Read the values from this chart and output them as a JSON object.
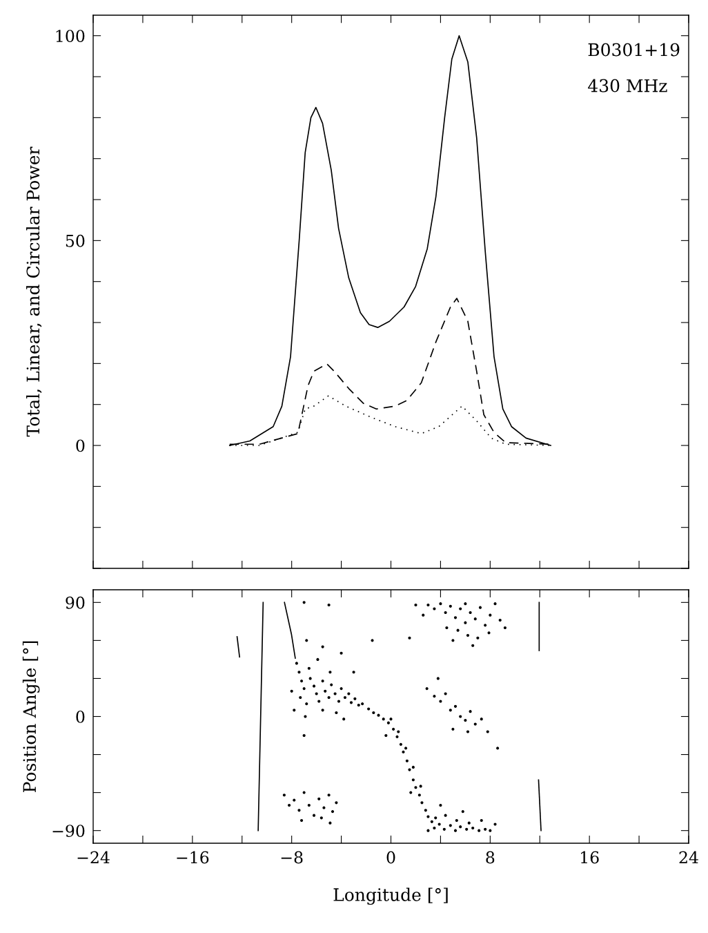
{
  "chart_data": [
    {
      "type": "line",
      "ylabel": "Total, Linear, and Circular Power",
      "annotations": [
        "B0301+19",
        "430 MHz"
      ],
      "xlim": [
        -24,
        24
      ],
      "ylim": [
        -30,
        105
      ],
      "xticks": [
        {
          "value": -24,
          "label": null
        },
        {
          "value": -20,
          "label": null
        },
        {
          "value": -16,
          "label": null
        },
        {
          "value": -12,
          "label": null
        },
        {
          "value": -8,
          "label": null
        },
        {
          "value": -4,
          "label": null
        },
        {
          "value": 0,
          "label": null
        },
        {
          "value": 4,
          "label": null
        },
        {
          "value": 8,
          "label": null
        },
        {
          "value": 12,
          "label": null
        },
        {
          "value": 16,
          "label": null
        },
        {
          "value": 20,
          "label": null
        },
        {
          "value": 24,
          "label": null
        }
      ],
      "yticks": [
        {
          "value": -30,
          "label": null
        },
        {
          "value": -20,
          "label": null
        },
        {
          "value": -10,
          "label": null
        },
        0,
        {
          "value": 10,
          "label": null
        },
        {
          "value": 20,
          "label": null
        },
        {
          "value": 30,
          "label": null
        },
        {
          "value": 40,
          "label": null
        },
        50,
        {
          "value": 60,
          "label": null
        },
        {
          "value": 70,
          "label": null
        },
        {
          "value": 80,
          "label": null
        },
        {
          "value": 90,
          "label": null
        },
        100
      ],
      "tick_labels": "y",
      "grid": false,
      "legend": false,
      "marker": "none",
      "series": [
        {
          "color": "#000000",
          "line_style": "solid",
          "x": [
            -13.0,
            -11.37,
            -9.49,
            -8.79,
            -8.09,
            -7.39,
            -6.91,
            -6.45,
            -6.05,
            -5.51,
            -4.81,
            -4.22,
            -3.4,
            -2.46,
            -1.76,
            -1.06,
            -0.12,
            1.06,
            1.99,
            2.93,
            3.63,
            4.33,
            4.91,
            5.5,
            6.2,
            6.91,
            7.61,
            8.31,
            9.02,
            9.72,
            10.89,
            12.88
          ],
          "values": [
            0,
            1.1,
            4.6,
            9.6,
            21.7,
            50.2,
            71.5,
            80.0,
            82.5,
            78.6,
            67.2,
            53.0,
            40.9,
            32.4,
            29.5,
            28.8,
            30.3,
            33.8,
            38.8,
            48.0,
            60.8,
            80.0,
            94.3,
            100,
            93.6,
            75.1,
            47.1,
            21.7,
            8.9,
            4.6,
            1.8,
            0
          ]
        },
        {
          "color": "#000000",
          "line_style": "dashed",
          "x": [
            -13.0,
            -10.6,
            -7.5,
            -6.68,
            -6.21,
            -5.16,
            -4.57,
            -3.4,
            -2.23,
            -1.17,
            0.34,
            1.29,
            2.45,
            3.63,
            4.8,
            5.31,
            6.2,
            6.91,
            7.49,
            8.31,
            9.25,
            12.88
          ],
          "values": [
            0.3,
            0.3,
            2.9,
            14.6,
            18.1,
            19.9,
            18.1,
            13.9,
            10.3,
            8.9,
            9.6,
            11.0,
            15.3,
            25.3,
            33.8,
            35.9,
            30.3,
            18.1,
            7.5,
            3.2,
            0.7,
            0.3
          ]
        },
        {
          "color": "#000000",
          "line_style": "dotted",
          "x": [
            -13.0,
            -10.6,
            -7.5,
            -6.91,
            -6.21,
            -5.04,
            -3.64,
            -1.53,
            0.34,
            2.45,
            3.86,
            5.73,
            6.91,
            8.08,
            9.25,
            12.88
          ],
          "values": [
            0,
            0,
            3.2,
            8.9,
            9.6,
            12.1,
            9.6,
            6.8,
            4.6,
            2.9,
            4.6,
            9.6,
            6.0,
            1.8,
            0.3,
            0
          ]
        }
      ]
    },
    {
      "type": "scatter",
      "xlabel": "Longitude [°]",
      "ylabel": "Position Angle [°]",
      "xlim": [
        -24,
        24
      ],
      "ylim": [
        -100,
        100
      ],
      "xticks": [
        {
          "value": -24,
          "label": "−24"
        },
        {
          "value": -20,
          "label": null
        },
        {
          "value": -16,
          "label": "−16"
        },
        {
          "value": -12,
          "label": null
        },
        {
          "value": -8,
          "label": "−8"
        },
        {
          "value": -4,
          "label": null
        },
        0,
        {
          "value": 4,
          "label": null
        },
        8,
        {
          "value": 12,
          "label": null
        },
        16,
        {
          "value": 20,
          "label": null
        },
        24
      ],
      "yticks": [
        {
          "value": -90,
          "label": "−90"
        },
        {
          "value": -60,
          "label": null
        },
        {
          "value": -30,
          "label": null
        },
        0,
        {
          "value": 30,
          "label": null
        },
        {
          "value": 60,
          "label": null
        },
        90
      ],
      "grid": false,
      "legend": false,
      "series": [
        {
          "type": "scatter",
          "color": "#000000",
          "marker": "circle",
          "x": [
            -7.6,
            -7.4,
            -7.2,
            -7.0,
            -7.3,
            -6.8,
            -6.5,
            -6.2,
            -6.0,
            -5.8,
            -5.5,
            -5.3,
            -5.0,
            -4.8,
            -4.5,
            -4.2,
            -4.0,
            -3.7,
            -3.4,
            -3.2,
            -2.9,
            -2.6,
            -2.3,
            -6.6,
            -5.9,
            -7.8,
            -6.9,
            -5.5,
            -4.4,
            -6.8,
            -5.5,
            -4.9,
            -8.0,
            -3.8,
            -7.0,
            -1.8,
            -1.4,
            -1.0,
            -0.6,
            -0.2,
            0.2,
            0.5,
            0.8,
            1.0,
            1.3,
            1.5,
            1.8,
            2.0,
            2.3,
            2.5,
            2.8,
            3.0,
            3.3,
            0.0,
            0.6,
            1.2,
            1.8,
            2.4,
            -0.4,
            1.6,
            3.0,
            3.5,
            3.9,
            4.3,
            4.8,
            5.2,
            5.6,
            6.1,
            6.6,
            7.1,
            7.6,
            8.0,
            3.6,
            4.4,
            5.3,
            6.3,
            4.0,
            5.8,
            7.3,
            8.4,
            3.0,
            3.5,
            4.0,
            4.4,
            4.8,
            5.2,
            5.6,
            6.0,
            6.4,
            6.8,
            7.2,
            7.6,
            8.0,
            8.4,
            8.8,
            5.4,
            6.2,
            7.0,
            6.6,
            5.0,
            7.9,
            9.2,
            2.6,
            4.5,
            6.0,
            2.9,
            3.5,
            4.0,
            4.4,
            4.8,
            5.2,
            5.6,
            6.0,
            6.4,
            6.8,
            7.3,
            3.8,
            5.0,
            7.8,
            8.6,
            6.2,
            -8.6,
            -8.2,
            -7.8,
            -7.4,
            -7.0,
            -6.6,
            -6.2,
            -5.8,
            -5.4,
            -5.0,
            -4.7,
            -4.4,
            -7.2,
            -5.6,
            -4.9,
            -3.0,
            -1.5,
            1.5,
            2.0,
            -5.0,
            -7.0,
            -4.0
          ],
          "values": [
            42,
            35,
            28,
            22,
            15,
            10,
            30,
            24,
            18,
            12,
            28,
            20,
            15,
            25,
            18,
            12,
            22,
            15,
            18,
            11,
            14,
            9,
            10,
            38,
            45,
            5,
            0,
            5,
            3,
            60,
            55,
            35,
            20,
            -2,
            -15,
            6,
            3,
            1,
            -2,
            -5,
            -10,
            -16,
            -22,
            -28,
            -35,
            -42,
            -50,
            -56,
            -62,
            -68,
            -74,
            -79,
            -83,
            -2,
            -12,
            -25,
            -40,
            -55,
            -15,
            -60,
            -90,
            -88,
            -85,
            -89,
            -86,
            -90,
            -87,
            -89,
            -88,
            -90,
            -89,
            -90,
            -80,
            -78,
            -82,
            -84,
            -70,
            -75,
            -82,
            -85,
            88,
            85,
            89,
            82,
            87,
            78,
            85,
            74,
            82,
            77,
            86,
            72,
            80,
            89,
            76,
            68,
            64,
            62,
            56,
            60,
            66,
            70,
            80,
            70,
            89,
            22,
            16,
            12,
            18,
            5,
            8,
            0,
            -3,
            4,
            -6,
            -2,
            30,
            -10,
            -12,
            -25,
            -12,
            -62,
            -70,
            -66,
            -74,
            -60,
            -70,
            -78,
            -65,
            -72,
            -62,
            -75,
            -68,
            -82,
            -80,
            -84,
            35,
            60,
            62,
            88,
            88,
            90,
            50
          ]
        },
        {
          "type": "line",
          "color": "#000000",
          "line_style": "solid",
          "x": [
            -10.7,
            -10.3
          ],
          "values": [
            -90,
            90
          ]
        },
        {
          "type": "line",
          "color": "#000000",
          "line_style": "solid",
          "x": [
            -8.58,
            -8.02,
            -7.71
          ],
          "values": [
            90,
            65,
            46
          ]
        },
        {
          "type": "line",
          "color": "#000000",
          "line_style": "solid",
          "x": [
            -12.4,
            -12.2
          ],
          "values": [
            63,
            47
          ]
        },
        {
          "type": "line",
          "color": "#000000",
          "line_style": "solid",
          "x": [
            11.95,
            11.95
          ],
          "values": [
            90,
            52
          ]
        },
        {
          "type": "line",
          "color": "#000000",
          "line_style": "solid",
          "x": [
            11.9,
            12.1
          ],
          "values": [
            -50,
            -90
          ]
        }
      ]
    }
  ]
}
